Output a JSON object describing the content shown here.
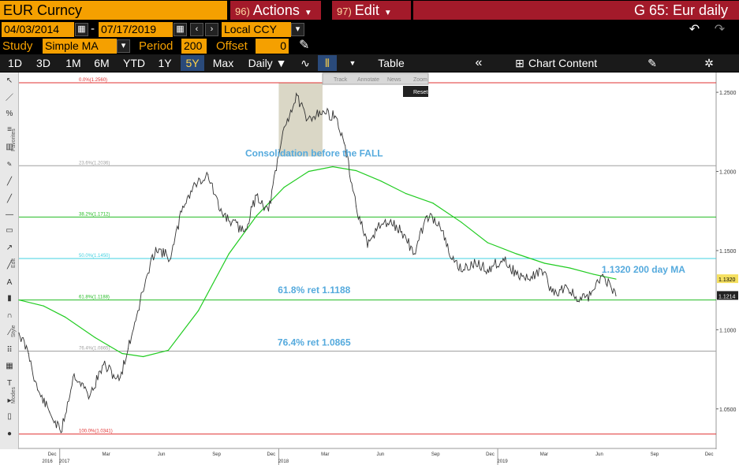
{
  "header": {
    "ticker": "EUR Curncy",
    "actions": {
      "num": "96)",
      "label": "Actions"
    },
    "edit": {
      "num": "97)",
      "label": "Edit"
    },
    "title": "G 65: Eur daily"
  },
  "range": {
    "start": "04/03/2014",
    "sep": "-",
    "end": "07/17/2019",
    "currency": "Local CCY"
  },
  "study": {
    "label": "Study",
    "value": "Simple MA",
    "period_label": "Period",
    "period": "200",
    "offset_label": "Offset",
    "offset": "0"
  },
  "toolbar": {
    "periods": [
      "1D",
      "3D",
      "1M",
      "6M",
      "YTD",
      "1Y",
      "5Y",
      "Max"
    ],
    "active_period": "5Y",
    "frequency": "Daily ▼",
    "table": "Table",
    "chart_content": "Chart Content"
  },
  "chart_tools": {
    "track": "Track",
    "annotate": "Annotate",
    "news": "News",
    "zoom": "Zoom",
    "reset": "Reset"
  },
  "left_tabs": {
    "favorites": "Favorites",
    "edit": "Edit",
    "style": "Style",
    "modes": "Modes"
  },
  "colors": {
    "orange": "#f5a000",
    "menu_red": "#a31a2a",
    "price": "#333333",
    "ma": "#22cc22",
    "fib_red": "#e03030",
    "fib_grey": "#a0a0a0",
    "fib_green": "#22bb22",
    "fib_cyan": "#40d0e0",
    "annotation": "#55aadd"
  },
  "chart_data": {
    "type": "line",
    "title": "",
    "x_tick_labels": [
      "Dec",
      "Mar",
      "Jun",
      "Sep",
      "Dec",
      "Mar",
      "Jun",
      "Sep",
      "Dec",
      "Mar",
      "Jun",
      "Sep",
      "Dec"
    ],
    "x_year_labels": [
      "2016",
      "2017",
      "2018",
      "2019"
    ],
    "x_range": [
      "2016-10-25",
      "2019-12-31"
    ],
    "ylim": [
      1.025,
      1.2625
    ],
    "y_ticks": [
      1.05,
      1.1,
      1.15,
      1.2,
      1.25
    ],
    "y_tick_labels": [
      "1.0500",
      "1.1000",
      "1.1500",
      "1.2000",
      "1.2500"
    ],
    "last_price_labels": [
      "1.1320",
      "1.1214"
    ],
    "series": [
      {
        "name": "",
        "x": [
          "2016-10-25",
          "2016-11-10",
          "2016-11-25",
          "2016-12-15",
          "2017-01-03",
          "2017-01-25",
          "2017-02-20",
          "2017-03-15",
          "2017-04-10",
          "2017-04-25",
          "2017-05-15",
          "2017-06-10",
          "2017-07-05",
          "2017-07-25",
          "2017-08-15",
          "2017-09-05",
          "2017-09-25",
          "2017-10-15",
          "2017-11-05",
          "2017-11-25",
          "2017-12-15",
          "2018-01-10",
          "2018-02-01",
          "2018-02-16",
          "2018-03-10",
          "2018-04-05",
          "2018-04-20",
          "2018-05-10",
          "2018-05-29",
          "2018-06-15",
          "2018-07-05",
          "2018-07-25",
          "2018-08-15",
          "2018-09-05",
          "2018-09-25",
          "2018-10-15",
          "2018-11-05",
          "2018-11-25",
          "2018-12-15",
          "2019-01-10",
          "2019-02-01",
          "2019-02-20",
          "2019-03-15",
          "2019-04-05",
          "2019-04-25",
          "2019-05-15",
          "2019-06-05",
          "2019-06-25",
          "2019-07-17"
        ],
        "values": [
          1.098,
          1.085,
          1.062,
          1.048,
          1.035,
          1.072,
          1.058,
          1.078,
          1.068,
          1.088,
          1.118,
          1.152,
          1.145,
          1.178,
          1.192,
          1.198,
          1.175,
          1.168,
          1.162,
          1.185,
          1.175,
          1.228,
          1.248,
          1.232,
          1.238,
          1.235,
          1.218,
          1.178,
          1.152,
          1.165,
          1.168,
          1.162,
          1.148,
          1.172,
          1.168,
          1.145,
          1.138,
          1.142,
          1.138,
          1.145,
          1.135,
          1.132,
          1.138,
          1.122,
          1.128,
          1.118,
          1.122,
          1.135,
          1.1214
        ]
      },
      {
        "name": "200 day MA",
        "x": [
          "2016-10-25",
          "2016-12-05",
          "2017-01-10",
          "2017-03-01",
          "2017-04-15",
          "2017-05-20",
          "2017-07-01",
          "2017-08-20",
          "2017-10-10",
          "2017-11-25",
          "2018-01-10",
          "2018-02-20",
          "2018-04-01",
          "2018-05-10",
          "2018-06-20",
          "2018-08-01",
          "2018-09-15",
          "2018-11-01",
          "2018-12-15",
          "2019-02-01",
          "2019-03-20",
          "2019-05-01",
          "2019-06-10",
          "2019-07-17"
        ],
        "values": [
          1.1188,
          1.115,
          1.108,
          1.095,
          1.085,
          1.083,
          1.087,
          1.112,
          1.148,
          1.172,
          1.19,
          1.2,
          1.203,
          1.2005,
          1.194,
          1.186,
          1.18,
          1.168,
          1.155,
          1.148,
          1.142,
          1.139,
          1.135,
          1.132
        ]
      }
    ],
    "fib_levels": [
      {
        "label": "0.0%(1.2560)",
        "value": 1.256,
        "color": "#e03030"
      },
      {
        "label": "23.6%(1.2036)",
        "value": 1.2036,
        "color": "#a0a0a0"
      },
      {
        "label": "38.2%(1.1712)",
        "value": 1.1712,
        "color": "#22bb22"
      },
      {
        "label": "50.0%(1.1450)",
        "value": 1.145,
        "color": "#40d0e0"
      },
      {
        "label": "61.8%(1.1188)",
        "value": 1.1188,
        "color": "#22bb22"
      },
      {
        "label": "76.4%(1.0865)",
        "value": 1.0865,
        "color": "#a0a0a0"
      },
      {
        "label": "100.0%(1.0341)",
        "value": 1.0341,
        "color": "#e03030"
      }
    ],
    "consolidation_box": {
      "x0": "2018-01-01",
      "x1": "2018-03-15",
      "y0": 1.2095,
      "y1": 1.256
    },
    "annotations": [
      {
        "text": "Consolidation before the FALL",
        "x": "2018-03-01",
        "y": 1.2095
      },
      {
        "text": "61.8% ret 1.1188",
        "x": "2018-03-01",
        "y": 1.123
      },
      {
        "text": "76.4% ret 1.0865",
        "x": "2018-03-01",
        "y": 1.09
      },
      {
        "text": "1.1320 200 day MA",
        "x": "2019-09-01",
        "y": 1.136
      }
    ]
  }
}
